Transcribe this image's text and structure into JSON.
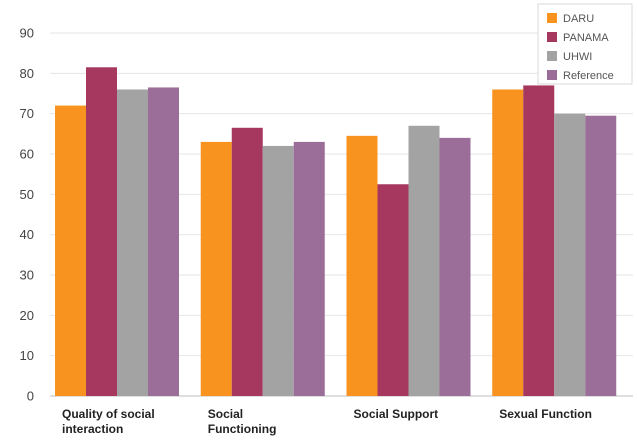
{
  "chart_data": {
    "type": "bar",
    "categories": [
      [
        "Quality of social",
        "interaction"
      ],
      [
        "Social",
        "Functioning"
      ],
      [
        "Social Support"
      ],
      [
        "Sexual Function"
      ]
    ],
    "series": [
      {
        "name": "DARU",
        "color": "#f7931e",
        "values": [
          72,
          63,
          64.5,
          76
        ]
      },
      {
        "name": "PANAMA",
        "color": "#a6385f",
        "values": [
          81.5,
          66.5,
          52.5,
          77
        ]
      },
      {
        "name": "UHWI",
        "color": "#a3a3a3",
        "values": [
          76,
          62,
          67,
          70
        ]
      },
      {
        "name": "Reference",
        "color": "#9a6e98",
        "values": [
          76.5,
          63,
          64,
          69.5
        ]
      }
    ],
    "yticks": [
      "0",
      "10",
      "20",
      "30",
      "40",
      "50",
      "60",
      "70",
      "80",
      "90"
    ],
    "ylim": [
      0,
      90
    ],
    "grid": true,
    "legend_position": "top-right",
    "title": "",
    "xlabel": "",
    "ylabel": ""
  }
}
